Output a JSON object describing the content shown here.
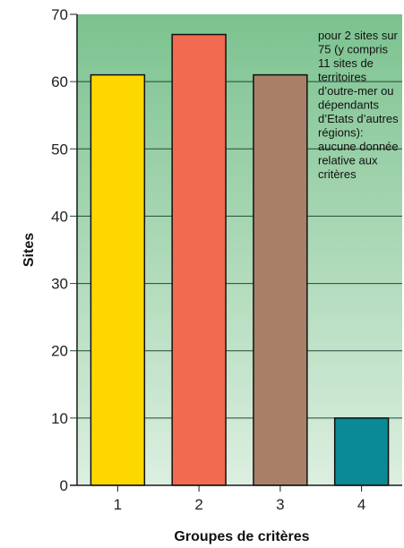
{
  "colors": {
    "plot_bg_top": "#7cc28f",
    "plot_bg_bottom": "#dcefe0",
    "gridline": "#1f4a36",
    "axis": "#1a1a1a"
  },
  "chart_data": {
    "type": "bar",
    "categories": [
      "1",
      "2",
      "3",
      "4"
    ],
    "values": [
      61,
      67,
      61,
      10
    ],
    "bar_colors": [
      "#ffd700",
      "#f26a4f",
      "#a88068",
      "#0a8a94"
    ],
    "xlabel": "Groupes de critères",
    "ylabel": "Sites",
    "ylim": [
      0,
      70
    ],
    "yticks": [
      0,
      10,
      20,
      30,
      40,
      50,
      60,
      70
    ],
    "grid": true,
    "annotation": {
      "lines": [
        "pour 2 sites sur",
        "75 (y compris",
        "11 sites de",
        "territoires",
        "d’outre-mer ou",
        "dépendants",
        "d’Etats d’autres",
        "régions):",
        "aucune donnée",
        "relative aux",
        "critères"
      ]
    }
  }
}
